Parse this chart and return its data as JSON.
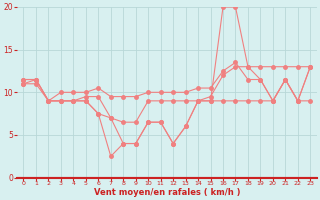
{
  "x": [
    0,
    1,
    2,
    3,
    4,
    5,
    6,
    7,
    8,
    9,
    10,
    11,
    12,
    13,
    14,
    15,
    16,
    17,
    18,
    19,
    20,
    21,
    22,
    23
  ],
  "line1": [
    11.5,
    11.5,
    9.0,
    9.0,
    9.0,
    9.5,
    9.5,
    7.0,
    6.5,
    6.5,
    9.0,
    9.0,
    9.0,
    9.0,
    9.0,
    9.5,
    12.0,
    13.0,
    13.0,
    13.0,
    13.0,
    13.0,
    13.0,
    13.0
  ],
  "line2": [
    11.0,
    11.5,
    9.0,
    10.0,
    10.0,
    10.0,
    10.5,
    9.5,
    9.5,
    9.5,
    10.0,
    10.0,
    10.0,
    10.0,
    10.5,
    10.5,
    12.5,
    13.5,
    11.5,
    11.5,
    9.0,
    11.5,
    9.0,
    13.0
  ],
  "line3": [
    11.0,
    11.0,
    9.0,
    9.0,
    9.0,
    9.0,
    7.5,
    7.0,
    4.0,
    4.0,
    6.5,
    6.5,
    4.0,
    6.0,
    9.0,
    9.0,
    9.0,
    9.0,
    9.0,
    9.0,
    9.0,
    11.5,
    9.0,
    9.0
  ],
  "line4": [
    11.5,
    11.5,
    9.0,
    9.0,
    9.0,
    9.0,
    7.5,
    2.5,
    4.0,
    4.0,
    6.5,
    6.5,
    4.0,
    6.0,
    9.0,
    9.0,
    20.0,
    20.0,
    13.0,
    11.5,
    9.0,
    11.5,
    9.0,
    13.0
  ],
  "line_color": "#f08080",
  "bg_color": "#d8f0f0",
  "grid_color": "#b8d8d8",
  "axis_color": "#cc2222",
  "tick_color": "#cc2222",
  "xlabel": "Vent moyen/en rafales ( km/h )",
  "ylim": [
    0,
    20
  ],
  "xlim": [
    -0.5,
    23.5
  ],
  "yticks": [
    0,
    5,
    10,
    15,
    20
  ],
  "xticks": [
    0,
    1,
    2,
    3,
    4,
    5,
    6,
    7,
    8,
    9,
    10,
    11,
    12,
    13,
    14,
    15,
    16,
    17,
    18,
    19,
    20,
    21,
    22,
    23
  ],
  "marker_size": 2.5,
  "line_width": 0.8
}
